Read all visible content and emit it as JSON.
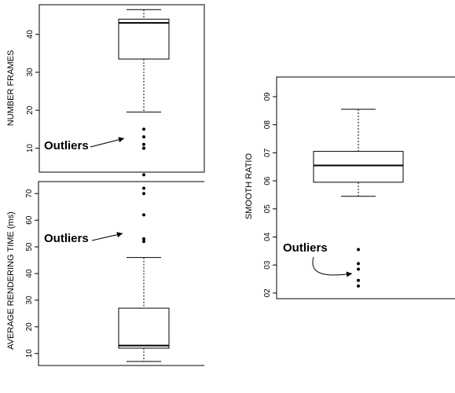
{
  "chart_data": [
    {
      "type": "boxplot",
      "ylabel": "NUMBER FRAMES",
      "yticks": [
        10,
        20,
        30,
        40
      ],
      "ylim": [
        3.7,
        47.8
      ],
      "box": {
        "whisker_low": 19.5,
        "q1": 33.5,
        "median": 43,
        "q3": 44,
        "whisker_high": 46.5
      },
      "outliers": [
        15,
        13,
        11,
        10,
        10,
        3
      ],
      "annotation": "Outliers"
    },
    {
      "type": "boxplot",
      "ylabel": "AVERAGE   RENDERING TIME  (ms)",
      "yticks": [
        10,
        20,
        30,
        40,
        50,
        60,
        70
      ],
      "ylim": [
        5.5,
        74.5
      ],
      "box": {
        "whisker_low": 7,
        "q1": 12,
        "median": 13,
        "q3": 27,
        "whisker_high": 46
      },
      "outliers": [
        72,
        70,
        62,
        53,
        52
      ],
      "annotation": "Outliers"
    },
    {
      "type": "boxplot",
      "ylabel": "SMOOTH  RATIO",
      "yticks": [
        0.2,
        0.3,
        0.4,
        0.5,
        0.6,
        0.7,
        0.8,
        0.9
      ],
      "ytick_labels": [
        "02",
        "03",
        "04",
        "05",
        "06",
        "07",
        "08",
        "09"
      ],
      "ylim": [
        0.18,
        0.97
      ],
      "box": {
        "whisker_low": 0.545,
        "q1": 0.595,
        "median": 0.655,
        "q3": 0.705,
        "whisker_high": 0.855
      },
      "outliers": [
        0.355,
        0.305,
        0.285,
        0.245,
        0.225
      ],
      "annotation": "Outliers"
    }
  ]
}
